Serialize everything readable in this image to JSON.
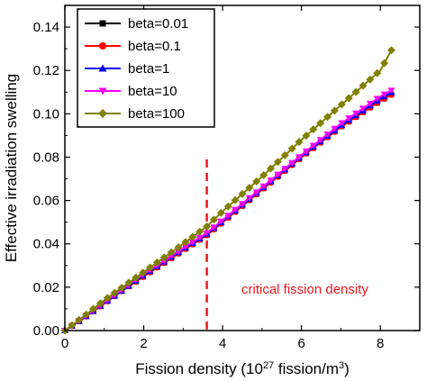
{
  "chart_data": {
    "type": "line",
    "xlabel_prefix": "Fission density (10",
    "xlabel_exp": "27",
    "xlabel_mid": " fission/m",
    "xlabel_exp2": "3",
    "xlabel_suffix": ")",
    "ylabel": "Effective irradiation swelling",
    "xlim": [
      0,
      9
    ],
    "ylim": [
      0,
      0.15
    ],
    "xticks": [
      0,
      2,
      4,
      6,
      8
    ],
    "xtick_labels": [
      "0",
      "2",
      "4",
      "6",
      "8"
    ],
    "yticks": [
      0.0,
      0.02,
      0.04,
      0.06,
      0.08,
      0.1,
      0.12,
      0.14
    ],
    "ytick_labels": [
      "0.00",
      "0.02",
      "0.04",
      "0.06",
      "0.08",
      "0.10",
      "0.12",
      "0.14"
    ],
    "legend_position": "top-left",
    "grid": false,
    "critical_line": {
      "x": 3.6,
      "color": "#e8191d",
      "label": "critical fission density"
    },
    "series": [
      {
        "name": "beta=0.01",
        "color": "#000000",
        "marker": "square",
        "x": [
          0,
          0.5,
          1,
          1.5,
          2,
          2.5,
          3,
          3.6,
          4,
          5,
          6,
          7,
          8,
          8.3
        ],
        "y": [
          0,
          0.006,
          0.0125,
          0.019,
          0.025,
          0.031,
          0.037,
          0.044,
          0.05,
          0.065,
          0.08,
          0.094,
          0.106,
          0.109
        ]
      },
      {
        "name": "beta=0.1",
        "color": "#ff0000",
        "marker": "circle",
        "x": [
          0,
          0.5,
          1,
          1.5,
          2,
          2.5,
          3,
          3.6,
          4,
          5,
          6,
          7,
          8,
          8.3
        ],
        "y": [
          0,
          0.006,
          0.0125,
          0.019,
          0.025,
          0.031,
          0.037,
          0.044,
          0.05,
          0.065,
          0.08,
          0.094,
          0.106,
          0.109
        ]
      },
      {
        "name": "beta=1",
        "color": "#0000ff",
        "marker": "triangle-up",
        "x": [
          0,
          0.5,
          1,
          1.5,
          2,
          2.5,
          3,
          3.6,
          4,
          5,
          6,
          7,
          8,
          8.3
        ],
        "y": [
          0,
          0.006,
          0.0127,
          0.019,
          0.0255,
          0.0315,
          0.0375,
          0.0445,
          0.0505,
          0.0655,
          0.0805,
          0.0945,
          0.107,
          0.11
        ]
      },
      {
        "name": "beta=10",
        "color": "#ff00ff",
        "marker": "triangle-down",
        "x": [
          0,
          0.5,
          1,
          1.5,
          2,
          2.5,
          3,
          3.6,
          4,
          5,
          6,
          7,
          8,
          8.3
        ],
        "y": [
          0,
          0.0063,
          0.013,
          0.0195,
          0.026,
          0.032,
          0.038,
          0.045,
          0.051,
          0.066,
          0.081,
          0.0955,
          0.108,
          0.111
        ]
      },
      {
        "name": "beta=100",
        "color": "#808000",
        "marker": "diamond",
        "x": [
          0,
          0.5,
          1,
          1.5,
          2,
          2.5,
          3,
          3.6,
          4,
          5,
          6,
          7,
          8,
          8.3
        ],
        "y": [
          0,
          0.0068,
          0.014,
          0.0205,
          0.027,
          0.0335,
          0.04,
          0.048,
          0.055,
          0.071,
          0.088,
          0.104,
          0.12,
          0.13
        ]
      }
    ]
  }
}
